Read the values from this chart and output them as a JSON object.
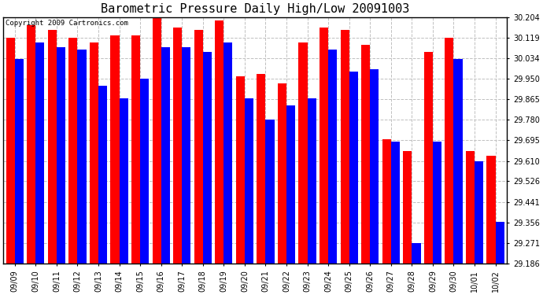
{
  "title": "Barometric Pressure Daily High/Low 20091003",
  "copyright": "Copyright 2009 Cartronics.com",
  "categories": [
    "09/09",
    "09/10",
    "09/11",
    "09/12",
    "09/13",
    "09/14",
    "09/15",
    "09/16",
    "09/17",
    "09/18",
    "09/19",
    "09/20",
    "09/21",
    "09/22",
    "09/23",
    "09/24",
    "09/25",
    "09/26",
    "09/27",
    "09/28",
    "09/29",
    "09/30",
    "10/01",
    "10/02"
  ],
  "high_values": [
    30.12,
    30.17,
    30.15,
    30.12,
    30.1,
    30.13,
    30.13,
    30.2,
    30.16,
    30.15,
    30.19,
    29.96,
    29.97,
    29.93,
    30.1,
    30.16,
    30.15,
    30.09,
    29.7,
    29.65,
    30.06,
    30.12,
    29.65,
    29.63
  ],
  "low_values": [
    30.03,
    30.1,
    30.08,
    30.07,
    29.92,
    29.87,
    29.95,
    30.08,
    30.08,
    30.06,
    30.1,
    29.87,
    29.78,
    29.84,
    29.87,
    30.07,
    29.98,
    29.99,
    29.69,
    29.27,
    29.69,
    30.03,
    29.61,
    29.36
  ],
  "high_color": "#FF0000",
  "low_color": "#0000FF",
  "bg_color": "#FFFFFF",
  "plot_bg_color": "#FFFFFF",
  "grid_color": "#C0C0C0",
  "yticks": [
    29.186,
    29.271,
    29.356,
    29.441,
    29.526,
    29.61,
    29.695,
    29.78,
    29.865,
    29.95,
    30.034,
    30.119,
    30.204
  ],
  "ylim_min": 29.186,
  "ylim_max": 30.204,
  "title_fontsize": 11,
  "tick_fontsize": 7,
  "copyright_fontsize": 6.5
}
